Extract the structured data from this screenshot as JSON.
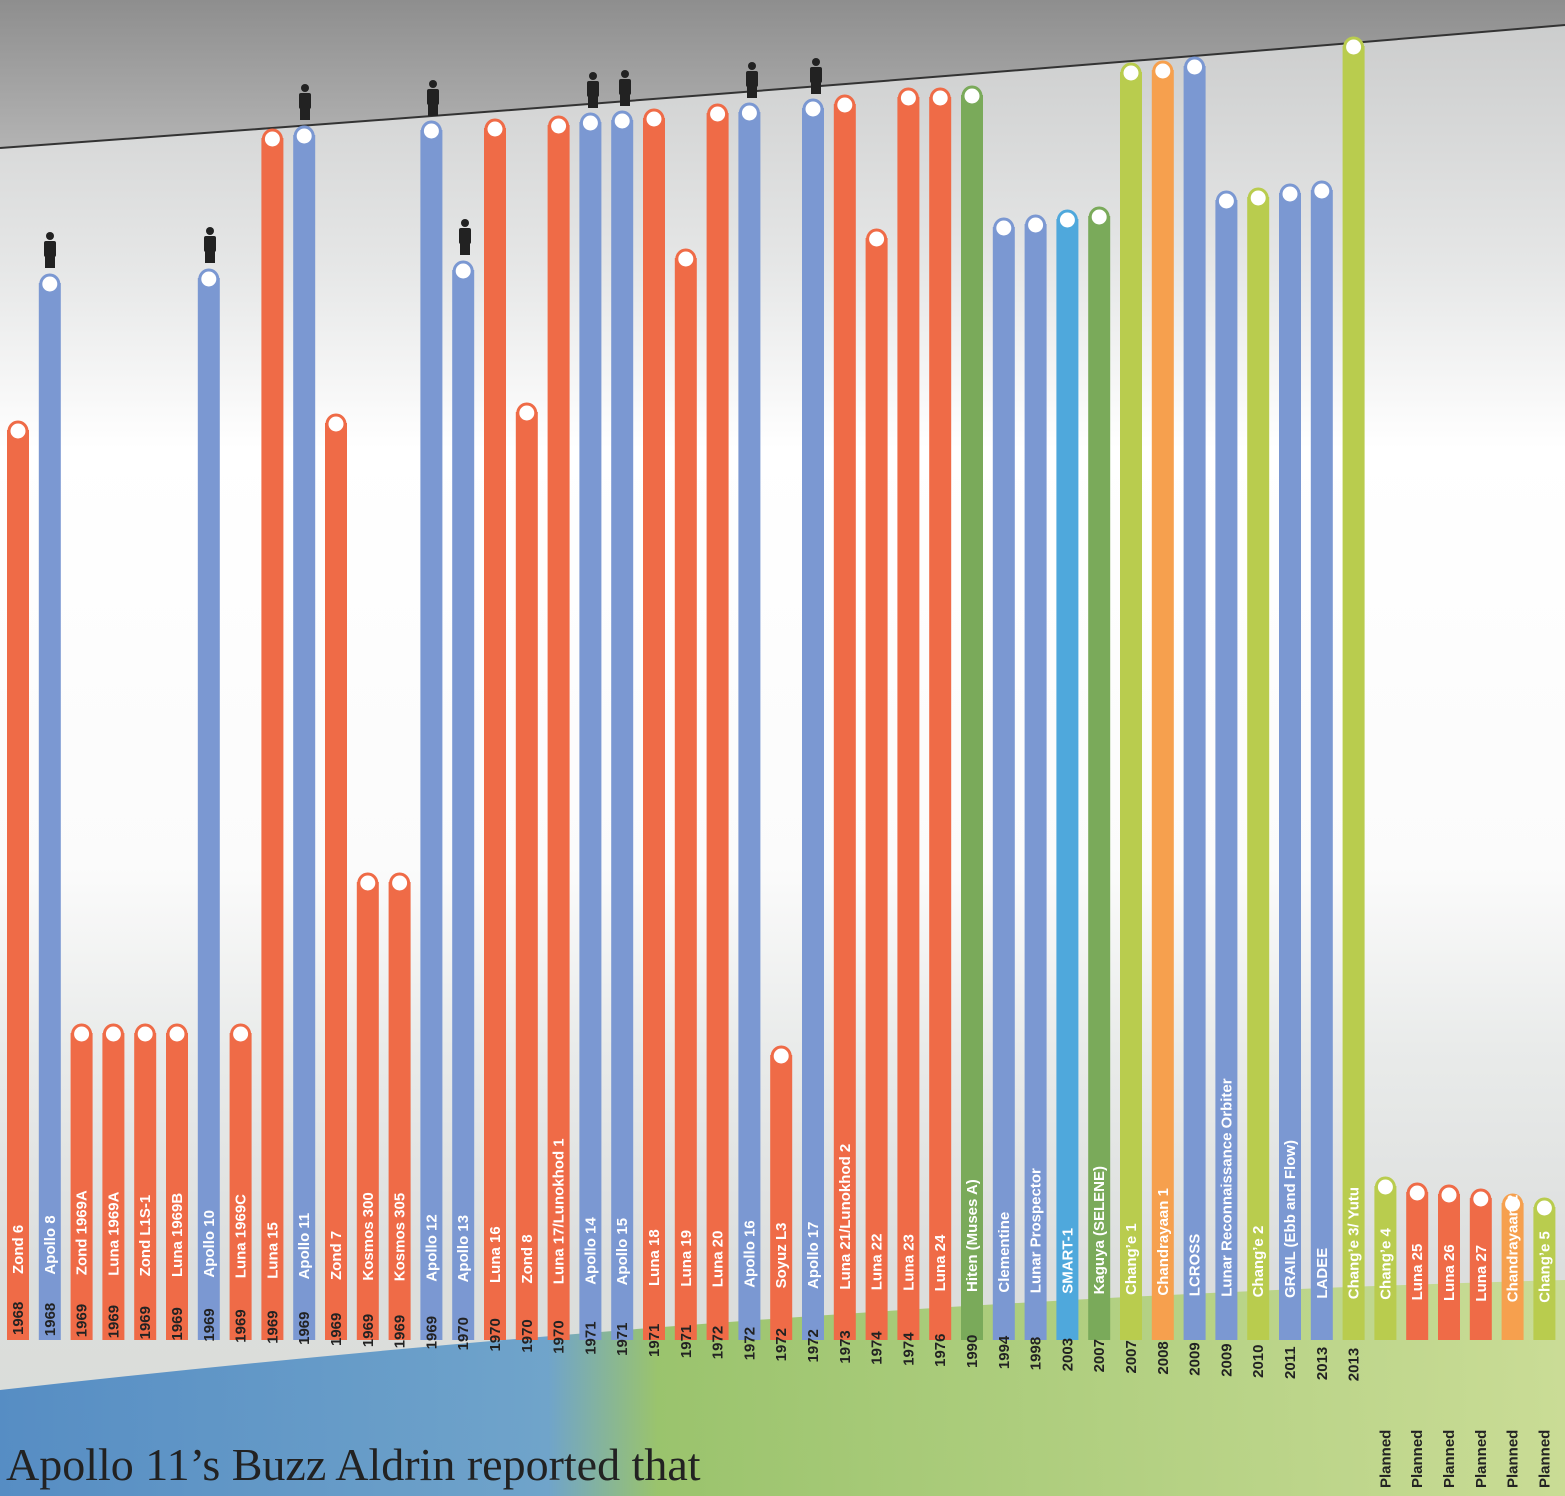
{
  "chart_data": {
    "type": "bar",
    "categories": [
      "Zond 6",
      "Apollo 8",
      "Zond 1969A",
      "Luna 1969A",
      "Zond L1S-1",
      "Luna 1969B",
      "Apollo 10",
      "Luna 1969C",
      "Luna 15",
      "Apollo 11",
      "Zond 7",
      "Kosmos 300",
      "Kosmos 305",
      "Apollo 12",
      "Apollo 13",
      "Luna 16",
      "Zond 8",
      "Luna 17/Lunokhod 1",
      "Apollo 14",
      "Apollo 15",
      "Luna 18",
      "Luna 19",
      "Luna 20",
      "Apollo 16",
      "Soyuz L3",
      "Apollo 17",
      "Luna 21/Lunokhod 2",
      "Luna 22",
      "Luna 23",
      "Luna 24",
      "Hiten (Muses A)",
      "Clementine",
      "Lunar Prospector",
      "SMART-1",
      "Kaguya (SELENE)",
      "Chang’e 1",
      "Chandrayaan 1",
      "LCROSS",
      "Lunar Reconnaissance Orbiter",
      "Chang’e 2",
      "GRAIL (Ebb and Flow)",
      "LADEE",
      "Chang’e 3/ Yutu",
      "Chang’e 4",
      "Luna 25",
      "Luna 26",
      "Luna 27",
      "Chandrayaan 2",
      "Chang’e 5"
    ],
    "years": [
      "1968",
      "1968",
      "1969",
      "1969",
      "1969",
      "1969",
      "1969",
      "1969",
      "1969",
      "1969",
      "1969",
      "1969",
      "1969",
      "1969",
      "1970",
      "1970",
      "1970",
      "1970",
      "1971",
      "1971",
      "1971",
      "1971",
      "1972",
      "1972",
      "1972",
      "1972",
      "1973",
      "1974",
      "1974",
      "1976",
      "1990",
      "1994",
      "1998",
      "2003",
      "2007",
      "2007",
      "2008",
      "2009",
      "2009",
      "2010",
      "2011",
      "2013",
      "2013",
      "Planned",
      "Planned",
      "Planned",
      "Planned",
      "Planned",
      "Planned"
    ],
    "values": [
      870,
      1017,
      267,
      267,
      267,
      267,
      1022,
      267,
      1162,
      1165,
      877,
      418,
      418,
      1170,
      1030,
      1172,
      888,
      1175,
      1178,
      1180,
      1182,
      1042,
      1187,
      1188,
      245,
      1192,
      1196,
      1062,
      1203,
      1203,
      1205,
      1073,
      1076,
      1081,
      1084,
      1228,
      1230,
      1234,
      1100,
      1103,
      1107,
      1110,
      1254,
      114,
      108,
      106,
      102,
      97,
      93
    ],
    "colors": [
      "#ef6b47",
      "#7b98d2",
      "#ef6b47",
      "#ef6b47",
      "#ef6b47",
      "#ef6b47",
      "#7b98d2",
      "#ef6b47",
      "#ef6b47",
      "#7b98d2",
      "#ef6b47",
      "#ef6b47",
      "#ef6b47",
      "#7b98d2",
      "#7b98d2",
      "#ef6b47",
      "#ef6b47",
      "#ef6b47",
      "#7b98d2",
      "#7b98d2",
      "#ef6b47",
      "#ef6b47",
      "#ef6b47",
      "#7b98d2",
      "#ef6b47",
      "#7b98d2",
      "#ef6b47",
      "#ef6b47",
      "#ef6b47",
      "#ef6b47",
      "#7aaa5a",
      "#7b98d2",
      "#7b98d2",
      "#4fa8dc",
      "#7aaa5a",
      "#b9cc4e",
      "#f6a04e",
      "#7b98d2",
      "#7b98d2",
      "#b9cc4e",
      "#7b98d2",
      "#7b98d2",
      "#b9cc4e",
      "#b9cc4e",
      "#ef6b47",
      "#ef6b47",
      "#ef6b47",
      "#f6a04e",
      "#b9cc4e"
    ],
    "ylim": [
      0,
      1300
    ],
    "caption": "Apollo 11’s Buzz Aldrin reported that"
  }
}
